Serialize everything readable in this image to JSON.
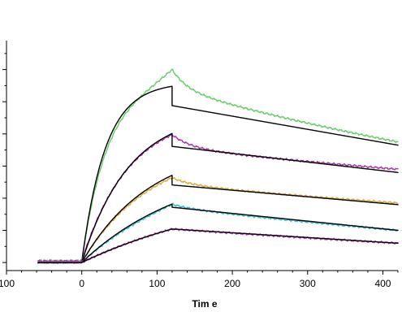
{
  "chart_data": {
    "type": "line",
    "title": "",
    "xlabel": "Tim e",
    "ylabel": "",
    "xlim": [
      -100,
      420
    ],
    "ylim": [
      -0.05,
      1.38
    ],
    "x_ticks": [
      -100,
      0,
      100,
      200,
      300,
      400
    ],
    "x_tick_labels": [
      "100",
      "0",
      "100",
      "200",
      "300",
      "400"
    ],
    "y_ticks": [
      0.0,
      0.2,
      0.4,
      0.6,
      0.8,
      1.0,
      1.2
    ],
    "y_tick_labels": [],
    "y_minor_ticks": [
      -0.1,
      0.1,
      0.3,
      0.5,
      0.7,
      0.9,
      1.1,
      1.3
    ],
    "grid": false,
    "legend": "none",
    "model": {
      "baseline_start": -58,
      "association_start": 0,
      "dissociation_start": 120,
      "end": 420
    },
    "series": [
      {
        "kind": "sensor",
        "color": "#66cc66",
        "baseline": 0.01,
        "plateau": 1.14,
        "k_on": 0.028,
        "peak_extra": 0.09,
        "dissoc_fast_drop": 0.12,
        "dissoc_fast_rate": 0.05,
        "dissoc_slow_rate": 0.0013,
        "end_value": 0.75
      },
      {
        "kind": "fit",
        "color": "#000000",
        "baseline": 0.0,
        "plateau": 1.12,
        "k_on": 0.032,
        "step_drop": 0.12,
        "end_value": 0.73
      },
      {
        "kind": "sensor",
        "color": "#aa33aa",
        "baseline": 0.01,
        "plateau": 0.92,
        "k_on": 0.016,
        "peak_extra": 0.0,
        "dissoc_fast_drop": 0.08,
        "dissoc_fast_rate": 0.04,
        "dissoc_slow_rate": 0.0012,
        "end_value": 0.58
      },
      {
        "kind": "fit",
        "color": "#000000",
        "baseline": 0.0,
        "plateau": 0.94,
        "k_on": 0.016,
        "step_drop": 0.08,
        "end_value": 0.56
      },
      {
        "kind": "sensor",
        "color": "#ddaa33",
        "baseline": 0.0,
        "plateau": 0.72,
        "k_on": 0.011,
        "peak_extra": 0.0,
        "dissoc_fast_drop": 0.04,
        "dissoc_fast_rate": 0.04,
        "dissoc_slow_rate": 0.0012,
        "end_value": 0.37
      },
      {
        "kind": "fit",
        "color": "#000000",
        "baseline": 0.0,
        "plateau": 0.74,
        "k_on": 0.011,
        "step_drop": 0.06,
        "end_value": 0.36
      },
      {
        "kind": "sensor",
        "color": "#33bbcc",
        "baseline": 0.0,
        "plateau": 0.62,
        "k_on": 0.007,
        "peak_extra": 0.01,
        "dissoc_fast_drop": 0.02,
        "dissoc_fast_rate": 0.04,
        "dissoc_slow_rate": 0.0009,
        "end_value": 0.2
      },
      {
        "kind": "fit",
        "color": "#000000",
        "baseline": 0.0,
        "plateau": 0.64,
        "k_on": 0.007,
        "step_drop": 0.02,
        "end_value": 0.2
      },
      {
        "kind": "sensor",
        "color": "#cc33cc",
        "baseline": 0.0,
        "plateau": 0.5,
        "k_on": 0.0045,
        "peak_extra": 0.0,
        "dissoc_fast_drop": 0.0,
        "dissoc_fast_rate": 0.04,
        "dissoc_slow_rate": 0.0007,
        "end_value": 0.12
      },
      {
        "kind": "fit",
        "color": "#000000",
        "baseline": 0.0,
        "plateau": 0.5,
        "k_on": 0.0045,
        "step_drop": 0.0,
        "end_value": 0.12
      }
    ]
  }
}
